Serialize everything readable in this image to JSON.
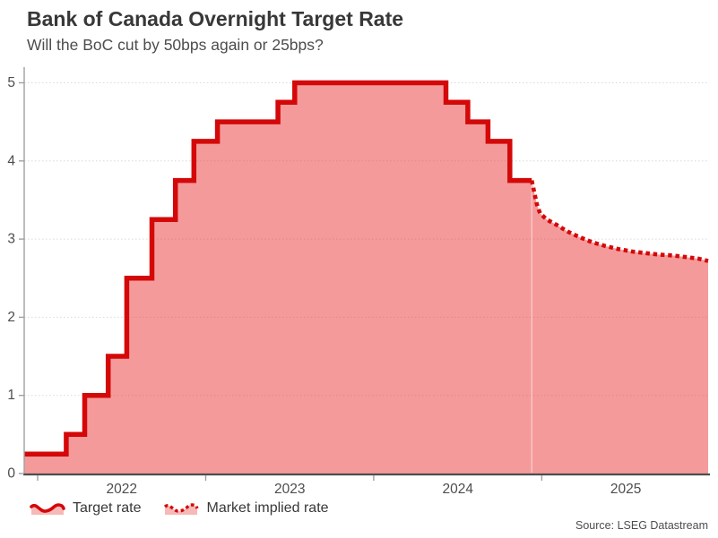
{
  "source": "Source: LSEG Datastream",
  "colors": {
    "line": "#d40808",
    "fill": "rgba(233,53,53,0.5)",
    "icon_fill": "rgba(233,53,53,0.35)",
    "grid": "#d9d9d9",
    "spine": "#a0a0a0",
    "axis": "#4d4d4d",
    "divider": "rgba(255,255,255,0.55)"
  },
  "chart_data": {
    "type": "area",
    "title": "Bank of Canada Overnight Target Rate",
    "subtitle": "Will the BoC cut by 50bps again or 25bps?",
    "xlabel": "",
    "ylabel": "",
    "xlim": [
      2021.92,
      2025.99
    ],
    "ylim": [
      0,
      5.2
    ],
    "grid": true,
    "legend_position": "bottom",
    "y_ticks": [
      0,
      1,
      2,
      3,
      4,
      5
    ],
    "x_tick_positions": [
      2022,
      2023,
      2024,
      2025
    ],
    "x_labels": [
      {
        "text": "2022",
        "pos": 2022.5
      },
      {
        "text": "2023",
        "pos": 2023.5
      },
      {
        "text": "2024",
        "pos": 2024.5
      },
      {
        "text": "2025",
        "pos": 2025.5
      }
    ],
    "forecast_divider_x": 2024.94,
    "series": [
      {
        "name": "Target rate",
        "style": "solid-step",
        "points": [
          [
            2021.92,
            0.25
          ],
          [
            2022.17,
            0.5
          ],
          [
            2022.28,
            1.0
          ],
          [
            2022.42,
            1.5
          ],
          [
            2022.53,
            2.5
          ],
          [
            2022.68,
            3.25
          ],
          [
            2022.82,
            3.75
          ],
          [
            2022.93,
            4.25
          ],
          [
            2023.07,
            4.5
          ],
          [
            2023.43,
            4.75
          ],
          [
            2023.53,
            5.0
          ],
          [
            2024.43,
            4.75
          ],
          [
            2024.56,
            4.5
          ],
          [
            2024.68,
            4.25
          ],
          [
            2024.81,
            3.75
          ],
          [
            2024.94,
            3.75
          ]
        ]
      },
      {
        "name": "Market implied rate",
        "style": "dotted-line",
        "points": [
          [
            2024.94,
            3.75
          ],
          [
            2024.955,
            3.6
          ],
          [
            2024.97,
            3.45
          ],
          [
            2024.99,
            3.33
          ],
          [
            2025.03,
            3.25
          ],
          [
            2025.09,
            3.18
          ],
          [
            2025.15,
            3.1
          ],
          [
            2025.22,
            3.03
          ],
          [
            2025.3,
            2.96
          ],
          [
            2025.38,
            2.91
          ],
          [
            2025.46,
            2.87
          ],
          [
            2025.54,
            2.84
          ],
          [
            2025.62,
            2.82
          ],
          [
            2025.7,
            2.8
          ],
          [
            2025.78,
            2.79
          ],
          [
            2025.86,
            2.77
          ],
          [
            2025.93,
            2.75
          ],
          [
            2025.99,
            2.72
          ]
        ]
      }
    ]
  }
}
